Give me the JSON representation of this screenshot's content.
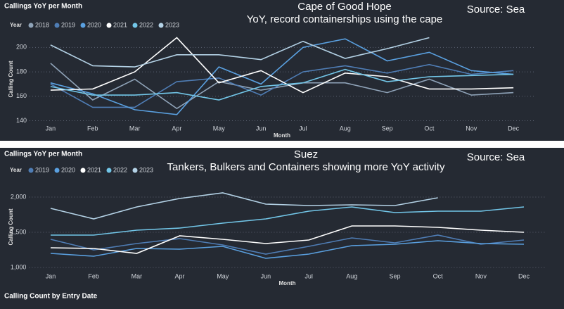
{
  "chart_data": [
    {
      "type": "line",
      "header": "Callings YoY per Month",
      "title": "Cape of Good Hope",
      "subtitle": "YoY, record containerships using the cape",
      "annotation": "Source: Sea",
      "legend_title": "Year",
      "x_label": "Month",
      "y_label": "Calling Count",
      "categories": [
        "Jan",
        "Feb",
        "Mar",
        "Apr",
        "May",
        "Jun",
        "Jul",
        "Aug",
        "Sep",
        "Oct",
        "Nov",
        "Dec"
      ],
      "ylim": [
        138,
        210
      ],
      "yticks": [
        140,
        160,
        180,
        200
      ],
      "grid": true,
      "series": [
        {
          "name": "2018",
          "color": "#8fa3b8",
          "values": [
            187,
            157,
            174,
            150,
            172,
            165,
            171,
            171,
            163,
            174,
            161,
            163
          ]
        },
        {
          "name": "2019",
          "color": "#4f7db5",
          "values": [
            170,
            151,
            151,
            172,
            175,
            161,
            180,
            185,
            179,
            186,
            178,
            181
          ]
        },
        {
          "name": "2020",
          "color": "#5aa0e0",
          "values": [
            171,
            162,
            149,
            145,
            184,
            170,
            200,
            207,
            189,
            196,
            181,
            178
          ]
        },
        {
          "name": "2021",
          "color": "#ffffff",
          "values": [
            165,
            166,
            180,
            208,
            171,
            181,
            163,
            179,
            176,
            166,
            166,
            167
          ]
        },
        {
          "name": "2022",
          "color": "#72c6e8",
          "values": [
            168,
            161,
            161,
            163,
            157,
            168,
            171,
            182,
            172,
            176,
            177,
            178
          ]
        },
        {
          "name": "2023",
          "color": "#b4d2e6",
          "values": [
            202,
            185,
            184,
            194,
            194,
            190,
            205,
            191,
            199,
            208,
            null,
            null
          ]
        }
      ]
    },
    {
      "type": "line",
      "header": "Callings YoY per Month",
      "title": "Suez",
      "subtitle": "Tankers, Bulkers and Containers showing more YoY activity",
      "annotation": "Source: Sea",
      "legend_title": "Year",
      "x_label": "Month",
      "y_label": "Calling Count",
      "categories": [
        "Jan",
        "Feb",
        "Mar",
        "Apr",
        "May",
        "Jun",
        "Jul",
        "Aug",
        "Sep",
        "Oct",
        "Nov",
        "Dec"
      ],
      "ylim": [
        950,
        2200
      ],
      "yticks": [
        {
          "value": 1000,
          "label": "1,000"
        },
        {
          "value": 1500,
          "label": "1,500"
        },
        {
          "value": 2000,
          "label": "2,000"
        }
      ],
      "grid": true,
      "series": [
        {
          "name": "2019",
          "color": "#4f7db5",
          "values": [
            1400,
            1250,
            1340,
            1410,
            1320,
            1190,
            1300,
            1420,
            1350,
            1460,
            1330,
            1390
          ]
        },
        {
          "name": "2020",
          "color": "#5aa0e0",
          "values": [
            1200,
            1160,
            1270,
            1260,
            1300,
            1130,
            1190,
            1310,
            1330,
            1380,
            1340,
            1330
          ]
        },
        {
          "name": "2021",
          "color": "#ffffff",
          "values": [
            1280,
            1270,
            1200,
            1450,
            1400,
            1340,
            1390,
            1590,
            1590,
            1570,
            1530,
            1500
          ]
        },
        {
          "name": "2022",
          "color": "#72c6e8",
          "values": [
            1460,
            1460,
            1530,
            1560,
            1630,
            1690,
            1800,
            1860,
            1780,
            1800,
            1800,
            1860
          ]
        },
        {
          "name": "2023",
          "color": "#b4d2e6",
          "values": [
            1840,
            1690,
            1860,
            1980,
            2060,
            1900,
            1880,
            1890,
            1880,
            1990,
            null,
            null
          ]
        }
      ]
    }
  ],
  "footer": "Calling Count by Entry Date"
}
